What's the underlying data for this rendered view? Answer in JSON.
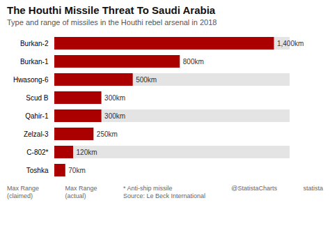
{
  "chart_data": {
    "type": "bar",
    "orientation": "horizontal",
    "title": "The Houthi Missile Threat To Saudi Arabia",
    "subtitle": "Type and range of missiles in the Houthi rebel arsenal in 2018",
    "categories": [
      "Burkan-2",
      "Burkan-1",
      "Hwasong-6",
      "Scud B",
      "Qahir-1",
      "Zelzal-3",
      "C-802*",
      "Toshka"
    ],
    "values": [
      1400,
      800,
      500,
      300,
      300,
      250,
      120,
      70
    ],
    "value_labels": [
      "1,400km",
      "800km",
      "500km",
      "300km",
      "300km",
      "250km",
      "120km",
      "70km"
    ],
    "data_labels": true,
    "color": "#aa0000",
    "xlim": [
      0,
      1500
    ],
    "tick_labels": "y",
    "grid": false,
    "annotations": [
      "Max Range\n(claimed)",
      "Max Range\n(actual)",
      "* Anti-ship missile\nSource: Le Beck International",
      "@StatistaCharts",
      "statista"
    ]
  }
}
